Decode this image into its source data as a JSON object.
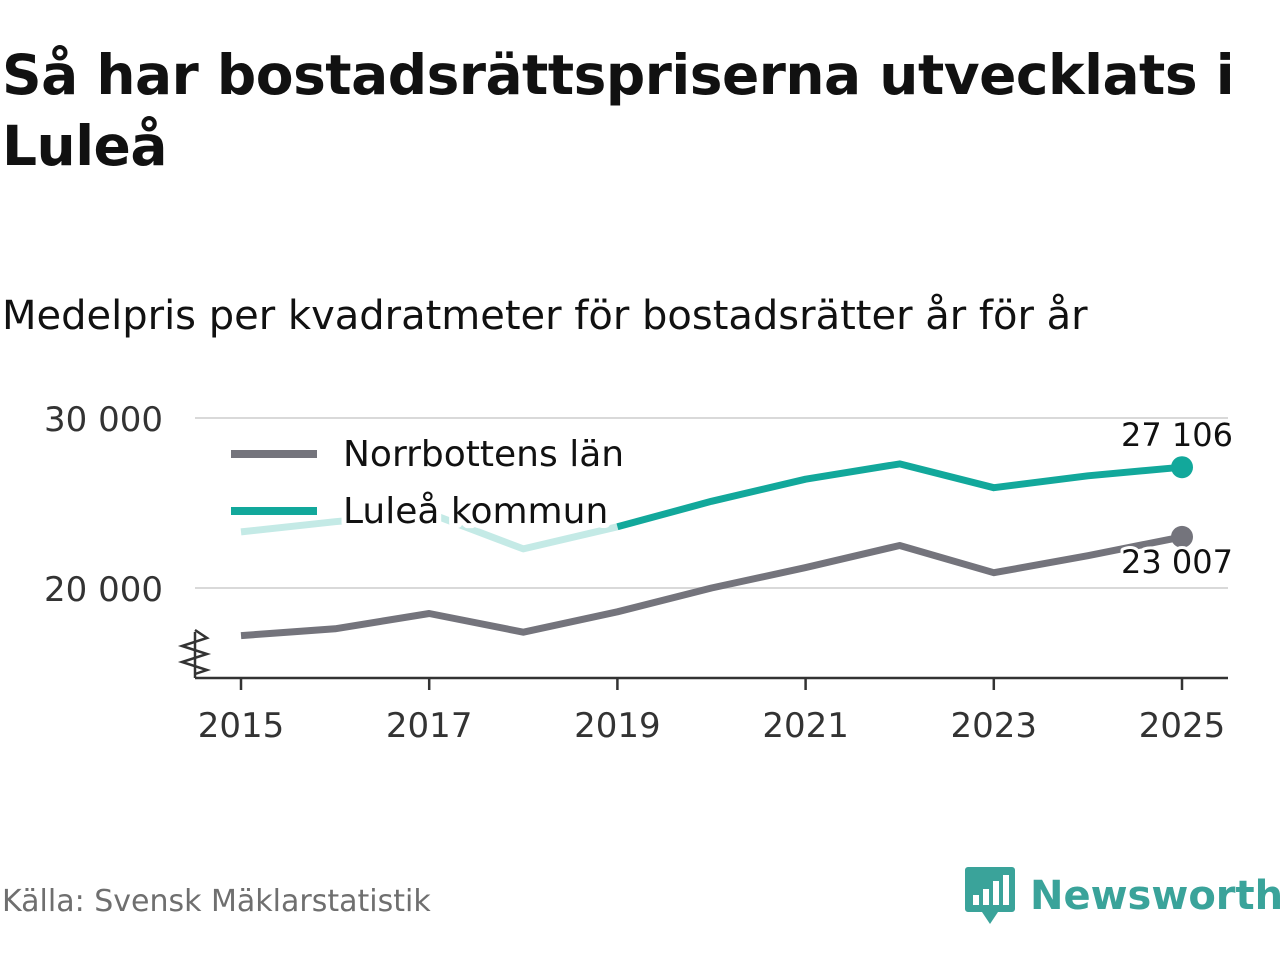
{
  "title": "Så har bostadsrättspriserna utvecklats i Luleå",
  "subtitle": "Medelpris per kvadratmeter för bostadsrätter år för år",
  "source": "Källa: Svensk Mäklarstatistik",
  "brand": {
    "name": "Newsworthy",
    "logo_icon": "newsworthy-logo-icon",
    "color": "#3aa39a"
  },
  "chart_data": {
    "type": "line",
    "title": "Så har bostadsrättspriserna utvecklats i Luleå",
    "subtitle": "Medelpris per kvadratmeter för bostadsrätter år för år",
    "xlabel": "",
    "ylabel": "",
    "x": [
      2015,
      2016,
      2017,
      2018,
      2019,
      2020,
      2021,
      2022,
      2023,
      2024,
      2025
    ],
    "x_ticks": [
      "2015",
      "2017",
      "2019",
      "2021",
      "2023",
      "2025"
    ],
    "y_ticks": [
      {
        "value": 20000,
        "label": "20 000"
      },
      {
        "value": 30000,
        "label": "30 000"
      }
    ],
    "ylim": [
      14500,
      30000
    ],
    "axis_break": true,
    "grid": true,
    "legend_position": "top-left",
    "series": [
      {
        "name": "Norrbottens län",
        "color": "#74747c",
        "values": [
          17200,
          17600,
          18500,
          17400,
          18600,
          20000,
          21200,
          22500,
          20900,
          21900,
          23007
        ],
        "end_label": "23 007"
      },
      {
        "name": "Luleå kommun",
        "color": "#12a89b",
        "faded_color": "#c4eae6",
        "faded_until_index": 4,
        "values": [
          23300,
          23900,
          24400,
          22300,
          23600,
          25100,
          26400,
          27300,
          25900,
          26600,
          27106
        ],
        "end_label": "27 106"
      }
    ]
  }
}
